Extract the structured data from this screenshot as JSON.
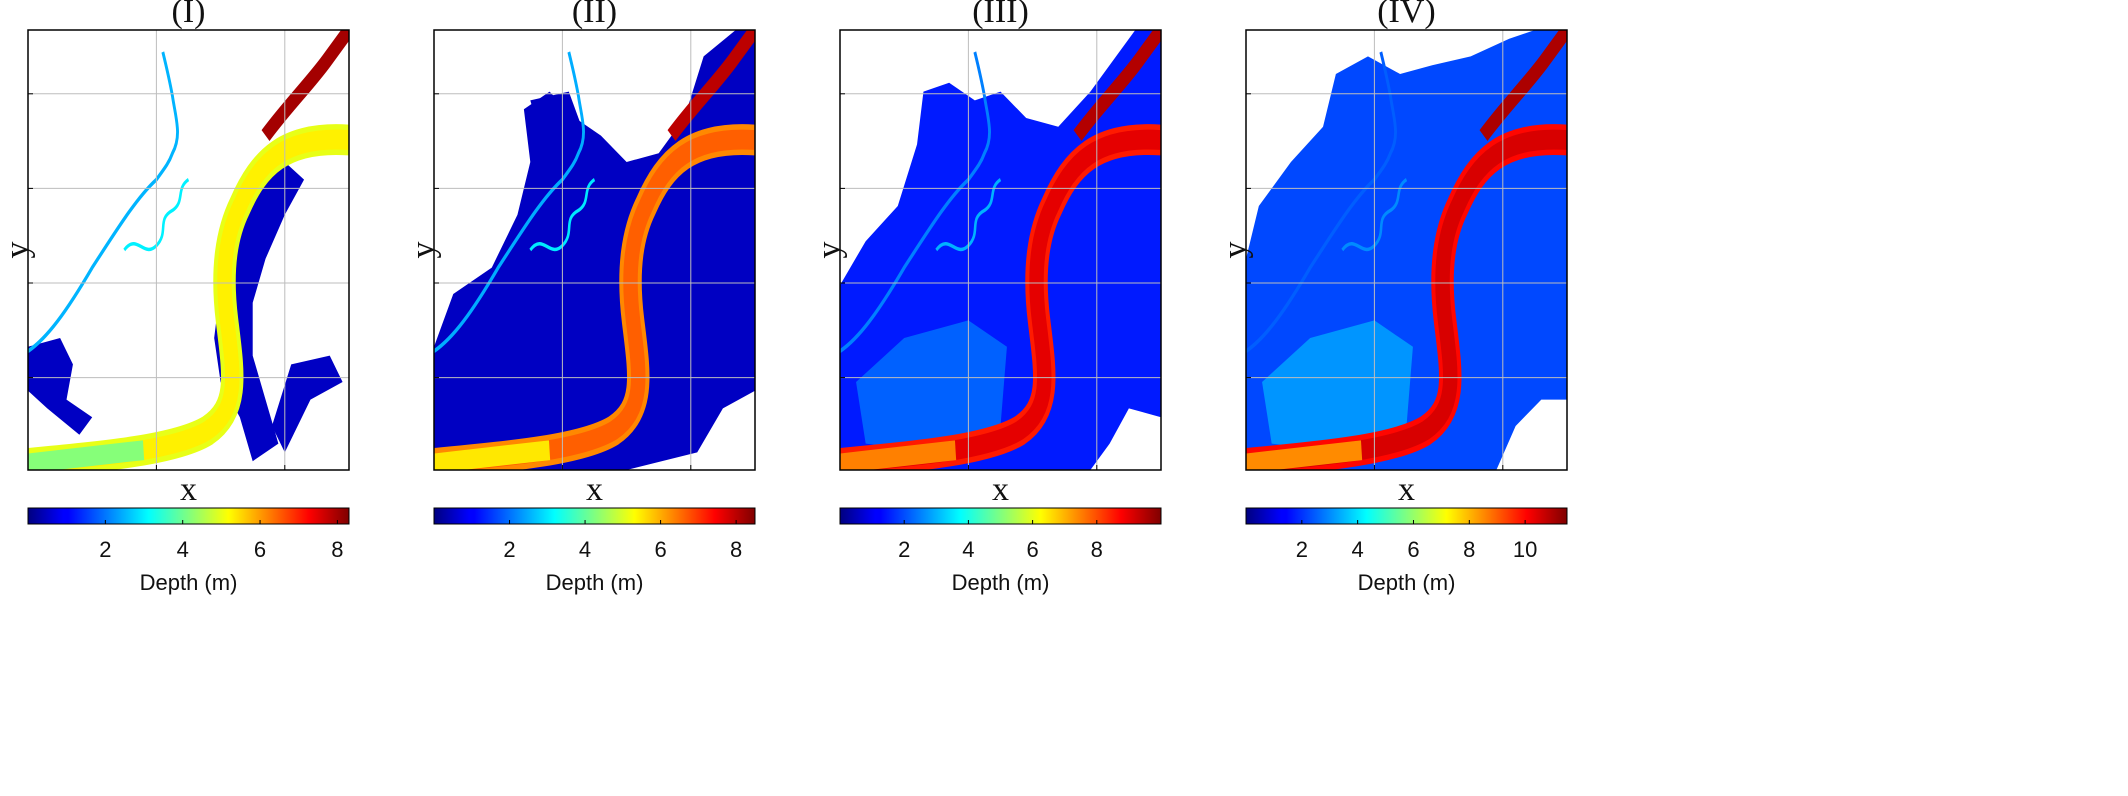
{
  "chart_data": [
    {
      "type": "heatmap",
      "title": "(I)",
      "xlabel": "x",
      "ylabel": "y",
      "grid": true,
      "colormap": "jet",
      "colorbar": {
        "label": "Depth (m)",
        "range": [
          0,
          8.3
        ],
        "ticks": [
          2,
          4,
          6,
          8
        ],
        "placement": "bottom"
      },
      "river_depth": {
        "main_channel": [
          5.0,
          5.6
        ],
        "lower_reach": 4.2,
        "upper_right": 8.0
      },
      "flood_extent": "small",
      "floodplain_depth": [
        0.1,
        1.0
      ]
    },
    {
      "type": "heatmap",
      "title": "(II)",
      "xlabel": "x",
      "ylabel": "y",
      "grid": true,
      "colormap": "jet",
      "colorbar": {
        "label": "Depth (m)",
        "range": [
          0,
          8.5
        ],
        "ticks": [
          2,
          4,
          6,
          8
        ],
        "placement": "bottom"
      },
      "river_depth": {
        "main_channel": [
          6.3,
          7.0
        ],
        "lower_reach": 5.5,
        "upper_right": 8.0
      },
      "flood_extent": "moderate",
      "floodplain_depth": [
        0.1,
        1.0
      ]
    },
    {
      "type": "heatmap",
      "title": "(III)",
      "xlabel": "x",
      "ylabel": "y",
      "grid": true,
      "colormap": "jet",
      "colorbar": {
        "label": "Depth (m)",
        "range": [
          0,
          10
        ],
        "ticks": [
          2,
          4,
          6,
          8
        ],
        "placement": "bottom"
      },
      "river_depth": {
        "main_channel": [
          8.5,
          9.5
        ],
        "lower_reach": 7.5,
        "upper_right": 9.5
      },
      "flood_extent": "large",
      "floodplain_depth": [
        0.5,
        2.5
      ]
    },
    {
      "type": "heatmap",
      "title": "(IV)",
      "xlabel": "x",
      "ylabel": "y",
      "grid": true,
      "colormap": "jet",
      "colorbar": {
        "label": "Depth (m)",
        "range": [
          0,
          11.5
        ],
        "ticks": [
          2,
          4,
          6,
          8,
          10
        ],
        "placement": "bottom"
      },
      "river_depth": {
        "main_channel": [
          10.0,
          11.0
        ],
        "lower_reach": 8.5,
        "upper_right": 11.0
      },
      "flood_extent": "very large",
      "floodplain_depth": [
        1.0,
        3.5
      ]
    }
  ]
}
